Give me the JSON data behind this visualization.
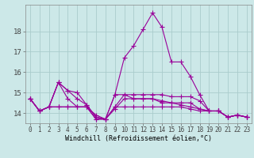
{
  "xlabel": "Windchill (Refroidissement éolien,°C)",
  "x": [
    0,
    1,
    2,
    3,
    4,
    5,
    6,
    7,
    8,
    9,
    10,
    11,
    12,
    13,
    14,
    15,
    16,
    17,
    18,
    19,
    20,
    21,
    22,
    23
  ],
  "lines": [
    [
      14.7,
      14.1,
      14.3,
      15.5,
      15.1,
      14.7,
      14.4,
      13.8,
      13.7,
      14.9,
      16.7,
      17.3,
      18.1,
      18.9,
      18.2,
      16.5,
      16.5,
      15.8,
      14.9,
      14.1,
      14.1,
      13.8,
      13.9,
      13.8
    ],
    [
      14.7,
      14.1,
      14.3,
      15.5,
      14.7,
      14.3,
      14.3,
      13.7,
      13.7,
      14.3,
      14.9,
      14.7,
      14.7,
      14.7,
      14.5,
      14.5,
      14.5,
      14.5,
      14.2,
      14.1,
      14.1,
      13.8,
      13.9,
      13.8
    ],
    [
      14.7,
      14.1,
      14.3,
      14.3,
      14.3,
      14.3,
      14.3,
      13.7,
      13.7,
      14.3,
      14.3,
      14.3,
      14.3,
      14.3,
      14.3,
      14.3,
      14.3,
      14.2,
      14.1,
      14.1,
      14.1,
      13.8,
      13.9,
      13.8
    ],
    [
      14.7,
      14.1,
      14.3,
      14.3,
      14.3,
      14.3,
      14.3,
      13.9,
      13.7,
      14.2,
      14.7,
      14.7,
      14.7,
      14.7,
      14.6,
      14.5,
      14.4,
      14.3,
      14.2,
      14.1,
      14.1,
      13.8,
      13.9,
      13.8
    ],
    [
      14.7,
      14.1,
      14.3,
      15.5,
      15.1,
      15.0,
      14.4,
      13.8,
      13.7,
      14.9,
      14.9,
      14.9,
      14.9,
      14.9,
      14.9,
      14.8,
      14.8,
      14.8,
      14.6,
      14.1,
      14.1,
      13.8,
      13.9,
      13.8
    ]
  ],
  "line_color": "#990099",
  "bg_color": "#cce8e8",
  "grid_color": "#aacccc",
  "ylim": [
    13.5,
    19.3
  ],
  "yticks": [
    14,
    15,
    16,
    17,
    18
  ],
  "marker": "+",
  "markersize": 4.0,
  "linewidth": 0.8,
  "tick_fontsize": 5.5,
  "xlabel_fontsize": 6.0
}
